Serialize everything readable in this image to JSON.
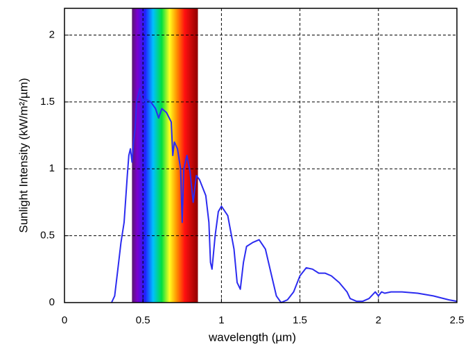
{
  "chart_data": {
    "type": "line",
    "ylabel": "Sunlight Intensity (kW/m²/µm)",
    "xlabel": "wavelength (µm)",
    "xlim": [
      0,
      2.5
    ],
    "ylim": [
      0,
      2.2
    ],
    "xticks": [
      0,
      0.5,
      1,
      1.5,
      2,
      2.5
    ],
    "yticks": [
      0,
      0.5,
      1,
      1.5,
      2
    ],
    "grid": true,
    "shaded_range": [
      0.43,
      0.85
    ],
    "series": [
      {
        "color": "#2b2bf0",
        "x": [
          0.3,
          0.32,
          0.34,
          0.36,
          0.38,
          0.4,
          0.41,
          0.42,
          0.43,
          0.44,
          0.45,
          0.46,
          0.48,
          0.5,
          0.52,
          0.55,
          0.58,
          0.6,
          0.62,
          0.65,
          0.68,
          0.69,
          0.7,
          0.72,
          0.74,
          0.75,
          0.76,
          0.78,
          0.8,
          0.82,
          0.84,
          0.86,
          0.9,
          0.92,
          0.93,
          0.94,
          0.96,
          0.98,
          1.0,
          1.04,
          1.08,
          1.1,
          1.12,
          1.14,
          1.16,
          1.2,
          1.24,
          1.28,
          1.32,
          1.35,
          1.38,
          1.42,
          1.46,
          1.5,
          1.54,
          1.58,
          1.62,
          1.66,
          1.7,
          1.75,
          1.8,
          1.82,
          1.86,
          1.9,
          1.94,
          1.98,
          2.0,
          2.02,
          2.04,
          2.08,
          2.15,
          2.25,
          2.35,
          2.45,
          2.5
        ],
        "values": [
          0,
          0.05,
          0.25,
          0.45,
          0.6,
          0.95,
          1.1,
          1.15,
          1.05,
          1.2,
          1.3,
          1.5,
          1.6,
          1.5,
          1.52,
          1.5,
          1.45,
          1.38,
          1.45,
          1.42,
          1.35,
          1.1,
          1.2,
          1.15,
          1.0,
          0.6,
          1.0,
          1.1,
          0.98,
          0.75,
          0.95,
          0.92,
          0.8,
          0.6,
          0.3,
          0.25,
          0.5,
          0.68,
          0.72,
          0.65,
          0.4,
          0.15,
          0.1,
          0.3,
          0.42,
          0.45,
          0.47,
          0.4,
          0.2,
          0.05,
          0.0,
          0.02,
          0.08,
          0.2,
          0.26,
          0.25,
          0.22,
          0.22,
          0.2,
          0.15,
          0.08,
          0.03,
          0.01,
          0.01,
          0.03,
          0.08,
          0.05,
          0.08,
          0.07,
          0.08,
          0.08,
          0.07,
          0.05,
          0.02,
          0.01
        ]
      }
    ]
  }
}
